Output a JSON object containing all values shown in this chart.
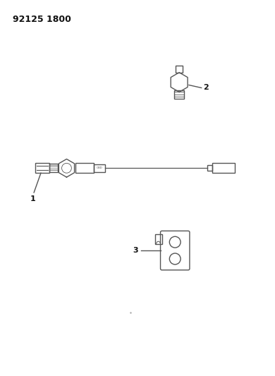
{
  "title": "92125 1800",
  "background_color": "#ffffff",
  "line_color": "#555555",
  "text_color": "#111111",
  "fig_width": 3.9,
  "fig_height": 5.33,
  "dpi": 100
}
